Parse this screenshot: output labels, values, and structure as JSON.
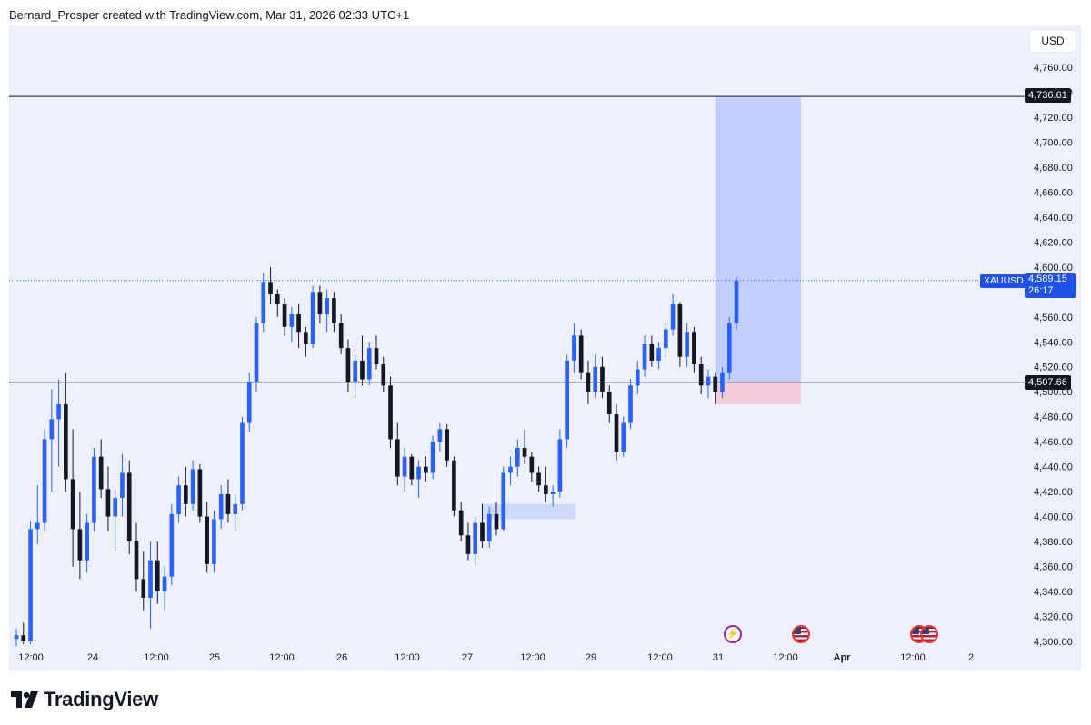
{
  "header": {
    "caption": "Bernard_Prosper created with TradingView.com, Mar 31, 2026 02:33 UTC+1"
  },
  "price_scale": {
    "currency": "USD",
    "ticks": [
      "4,760.00",
      "4,740.00",
      "4,720.00",
      "4,700.00",
      "4,680.00",
      "4,660.00",
      "4,640.00",
      "4,620.00",
      "4,600.00",
      "4,580.00",
      "4,560.00",
      "4,540.00",
      "4,520.00",
      "4,500.00",
      "4,480.00",
      "4,460.00",
      "4,440.00",
      "4,420.00",
      "4,400.00",
      "4,380.00",
      "4,360.00",
      "4,340.00",
      "4,320.00",
      "4,300.00"
    ]
  },
  "time_axis": {
    "ticks": [
      "12:00",
      "24",
      "12:00",
      "25",
      "12:00",
      "26",
      "12:00",
      "27",
      "12:00",
      "29",
      "12:00",
      "31",
      "12:00",
      "Apr",
      "12:00",
      "2"
    ]
  },
  "levels": {
    "upper": "4,736.61",
    "lower": "4,507.66"
  },
  "symbol": {
    "ticker": "XAUUSD",
    "price": "4,589.15",
    "countdown": "26:17"
  },
  "events": [
    "flash-event-icon",
    "us-flag-icon",
    "us-flag-icon",
    "us-flag-icon"
  ],
  "chart_data": {
    "type": "candlestick",
    "symbol": "XAUUSD",
    "y_range": [
      4295,
      4770
    ],
    "price_ticks": [
      4760,
      4740,
      4720,
      4700,
      4680,
      4660,
      4640,
      4620,
      4600,
      4580,
      4560,
      4540,
      4520,
      4500,
      4480,
      4460,
      4440,
      4420,
      4400,
      4380,
      4360,
      4340,
      4320,
      4300
    ],
    "horizontal_levels": [
      4736.61,
      4507.66
    ],
    "last_price": 4589.15,
    "colors": {
      "up": "#2962ff",
      "down": "#131722",
      "target_zone": "#bacbfc",
      "stop_zone": "#f5c6d6",
      "demand_zone": "#c8d6fb",
      "panel": "#eef0fd"
    },
    "candles": [
      [
        4302,
        4310,
        4296,
        4305
      ],
      [
        4305,
        4315,
        4298,
        4300
      ],
      [
        4300,
        4396,
        4298,
        4390
      ],
      [
        4390,
        4425,
        4378,
        4395
      ],
      [
        4395,
        4470,
        4388,
        4462
      ],
      [
        4462,
        4502,
        4420,
        4478
      ],
      [
        4478,
        4510,
        4440,
        4490
      ],
      [
        4490,
        4515,
        4420,
        4430
      ],
      [
        4430,
        4470,
        4360,
        4390
      ],
      [
        4390,
        4420,
        4350,
        4365
      ],
      [
        4365,
        4402,
        4355,
        4395
      ],
      [
        4395,
        4455,
        4388,
        4448
      ],
      [
        4448,
        4462,
        4415,
        4422
      ],
      [
        4422,
        4440,
        4388,
        4400
      ],
      [
        4400,
        4422,
        4372,
        4415
      ],
      [
        4415,
        4450,
        4400,
        4435
      ],
      [
        4435,
        4445,
        4370,
        4380
      ],
      [
        4380,
        4395,
        4340,
        4350
      ],
      [
        4350,
        4372,
        4325,
        4335
      ],
      [
        4335,
        4380,
        4310,
        4365
      ],
      [
        4365,
        4380,
        4330,
        4340
      ],
      [
        4340,
        4360,
        4325,
        4352
      ],
      [
        4352,
        4410,
        4345,
        4402
      ],
      [
        4402,
        4432,
        4395,
        4425
      ],
      [
        4425,
        4440,
        4400,
        4410
      ],
      [
        4410,
        4445,
        4405,
        4438
      ],
      [
        4438,
        4442,
        4395,
        4400
      ],
      [
        4400,
        4412,
        4355,
        4362
      ],
      [
        4362,
        4405,
        4355,
        4398
      ],
      [
        4398,
        4425,
        4390,
        4418
      ],
      [
        4418,
        4430,
        4395,
        4402
      ],
      [
        4402,
        4418,
        4388,
        4410
      ],
      [
        4410,
        4480,
        4405,
        4475
      ],
      [
        4475,
        4515,
        4468,
        4508
      ],
      [
        4508,
        4560,
        4500,
        4555
      ],
      [
        4555,
        4595,
        4548,
        4588
      ],
      [
        4588,
        4600,
        4570,
        4578
      ],
      [
        4578,
        4582,
        4560,
        4570
      ],
      [
        4570,
        4575,
        4545,
        4552
      ],
      [
        4552,
        4568,
        4540,
        4562
      ],
      [
        4562,
        4570,
        4535,
        4548
      ],
      [
        4548,
        4552,
        4528,
        4538
      ],
      [
        4538,
        4585,
        4535,
        4580
      ],
      [
        4580,
        4585,
        4555,
        4562
      ],
      [
        4562,
        4582,
        4548,
        4575
      ],
      [
        4575,
        4580,
        4548,
        4555
      ],
      [
        4555,
        4562,
        4530,
        4535
      ],
      [
        4535,
        4542,
        4500,
        4508
      ],
      [
        4508,
        4530,
        4495,
        4525
      ],
      [
        4525,
        4545,
        4505,
        4510
      ],
      [
        4510,
        4540,
        4505,
        4535
      ],
      [
        4535,
        4545,
        4518,
        4522
      ],
      [
        4522,
        4528,
        4500,
        4505
      ],
      [
        4505,
        4512,
        4455,
        4462
      ],
      [
        4462,
        4475,
        4425,
        4432
      ],
      [
        4432,
        4455,
        4420,
        4448
      ],
      [
        4448,
        4450,
        4425,
        4430
      ],
      [
        4430,
        4445,
        4415,
        4440
      ],
      [
        4440,
        4448,
        4428,
        4435
      ],
      [
        4435,
        4465,
        4430,
        4460
      ],
      [
        4460,
        4475,
        4452,
        4470
      ],
      [
        4470,
        4474,
        4440,
        4445
      ],
      [
        4445,
        4448,
        4400,
        4405
      ],
      [
        4405,
        4412,
        4380,
        4385
      ],
      [
        4385,
        4395,
        4365,
        4370
      ],
      [
        4370,
        4400,
        4360,
        4395
      ],
      [
        4395,
        4410,
        4375,
        4380
      ],
      [
        4380,
        4408,
        4375,
        4402
      ],
      [
        4402,
        4412,
        4385,
        4390
      ],
      [
        4390,
        4440,
        4388,
        4435
      ],
      [
        4435,
        4448,
        4425,
        4440
      ],
      [
        4440,
        4462,
        4432,
        4455
      ],
      [
        4455,
        4470,
        4442,
        4448
      ],
      [
        4448,
        4452,
        4428,
        4435
      ],
      [
        4435,
        4440,
        4420,
        4425
      ],
      [
        4425,
        4440,
        4412,
        4418
      ],
      [
        4418,
        4425,
        4408,
        4420
      ],
      [
        4420,
        4470,
        4415,
        4462
      ],
      [
        4462,
        4530,
        4455,
        4525
      ],
      [
        4525,
        4555,
        4515,
        4545
      ],
      [
        4545,
        4550,
        4510,
        4515
      ],
      [
        4515,
        4525,
        4490,
        4500
      ],
      [
        4500,
        4530,
        4495,
        4520
      ],
      [
        4520,
        4528,
        4495,
        4500
      ],
      [
        4500,
        4505,
        4475,
        4482
      ],
      [
        4482,
        4490,
        4445,
        4452
      ],
      [
        4452,
        4480,
        4448,
        4475
      ],
      [
        4475,
        4510,
        4470,
        4505
      ],
      [
        4505,
        4525,
        4498,
        4518
      ],
      [
        4518,
        4545,
        4512,
        4538
      ],
      [
        4538,
        4545,
        4520,
        4525
      ],
      [
        4525,
        4540,
        4518,
        4535
      ],
      [
        4535,
        4555,
        4528,
        4550
      ],
      [
        4550,
        4578,
        4545,
        4570
      ],
      [
        4570,
        4572,
        4520,
        4528
      ],
      [
        4528,
        4555,
        4520,
        4548
      ],
      [
        4548,
        4552,
        4515,
        4522
      ],
      [
        4522,
        4528,
        4498,
        4505
      ],
      [
        4505,
        4518,
        4495,
        4512
      ],
      [
        4512,
        4515,
        4490,
        4500
      ],
      [
        4500,
        4520,
        4495,
        4515
      ],
      [
        4515,
        4560,
        4510,
        4555
      ],
      [
        4555,
        4592,
        4550,
        4589
      ]
    ],
    "zones": [
      {
        "name": "target",
        "from_index": 99,
        "to_index": 106,
        "top": 4736.61,
        "bottom": 4507.66
      },
      {
        "name": "stop",
        "from_index": 99,
        "to_index": 106,
        "top": 4507.66,
        "bottom": 4490
      },
      {
        "name": "demand",
        "from_index": 66,
        "to_index": 74,
        "top": 4410,
        "bottom": 4398
      }
    ]
  },
  "footer": {
    "brand": "TradingView"
  }
}
